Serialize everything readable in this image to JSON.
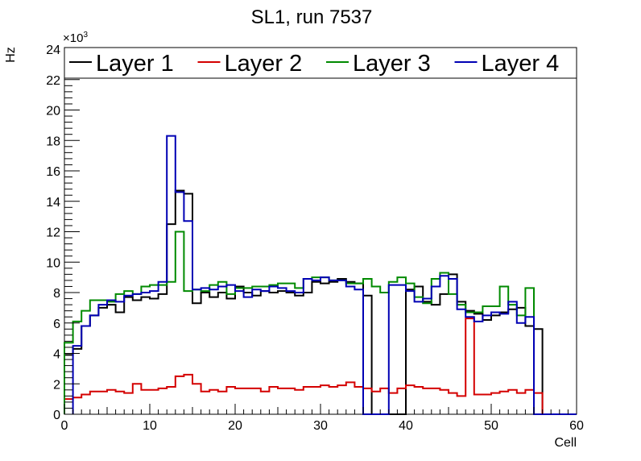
{
  "chart_data": {
    "type": "line",
    "title": "SL1, run 7537",
    "xlabel": "Cell",
    "ylabel": "Hz",
    "ymultiplier": "×10",
    "ymultiplier_exp": "3",
    "xlim": [
      0,
      60
    ],
    "ylim": [
      0,
      24
    ],
    "x_ticks": [
      0,
      10,
      20,
      30,
      40,
      50,
      60
    ],
    "y_ticks": [
      0,
      2,
      4,
      6,
      8,
      10,
      12,
      14,
      16,
      18,
      20,
      22,
      24
    ],
    "legend_position": "top",
    "series": [
      {
        "name": "Layer 1",
        "color": "#000000",
        "bin_start": 0,
        "values": [
          3.9,
          4.3,
          5.8,
          6.5,
          7.0,
          7.2,
          6.7,
          7.7,
          7.5,
          7.7,
          7.6,
          7.9,
          12.5,
          14.7,
          14.5,
          7.3,
          8.0,
          7.7,
          8.0,
          7.6,
          8.4,
          8.0,
          7.8,
          8.1,
          8.0,
          8.1,
          8.0,
          7.8,
          8.0,
          8.7,
          8.6,
          8.7,
          8.9,
          8.7,
          8.6,
          7.8,
          0,
          0,
          0,
          0,
          8.2,
          8.4,
          7.4,
          7.2,
          7.9,
          9.2,
          7.4,
          6.8,
          6.6,
          6.2,
          6.5,
          6.7,
          6.9,
          7.0,
          5.8,
          5.6,
          0,
          0,
          0,
          0
        ]
      },
      {
        "name": "Layer 2",
        "color": "#d40000",
        "bin_start": 0,
        "values": [
          1.0,
          1.1,
          1.3,
          1.5,
          1.5,
          1.6,
          1.5,
          1.4,
          2.0,
          1.6,
          1.6,
          1.7,
          1.8,
          2.5,
          2.6,
          2.0,
          1.5,
          1.6,
          1.5,
          1.8,
          1.7,
          1.7,
          1.7,
          1.5,
          1.8,
          1.7,
          1.7,
          1.6,
          1.8,
          1.8,
          1.9,
          1.8,
          1.9,
          2.1,
          1.8,
          1.7,
          1.5,
          1.7,
          1.4,
          1.7,
          1.9,
          1.8,
          1.7,
          1.7,
          1.6,
          1.4,
          1.2,
          6.3,
          1.3,
          1.3,
          1.4,
          1.5,
          1.6,
          1.4,
          1.6,
          1.4,
          0,
          0,
          0,
          0
        ]
      },
      {
        "name": "Layer 3",
        "color": "#008a00",
        "bin_start": 0,
        "values": [
          4.7,
          6.1,
          6.8,
          7.5,
          7.5,
          7.4,
          7.9,
          8.1,
          7.9,
          8.4,
          8.5,
          8.5,
          8.7,
          12.0,
          8.1,
          8.2,
          8.1,
          8.5,
          8.7,
          7.9,
          8.3,
          8.3,
          8.4,
          8.4,
          8.5,
          8.6,
          8.6,
          8.3,
          8.9,
          9.0,
          9.0,
          8.8,
          8.8,
          8.6,
          8.6,
          8.9,
          8.4,
          8.0,
          8.7,
          9.0,
          8.6,
          7.7,
          7.3,
          8.9,
          9.3,
          7.9,
          7.2,
          6.7,
          6.7,
          7.1,
          7.1,
          8.4,
          7.2,
          6.5,
          8.3,
          0,
          0,
          0,
          0,
          0
        ]
      },
      {
        "name": "Layer 4",
        "color": "#0000b4",
        "bin_start": 1,
        "values": [
          4.5,
          5.8,
          6.5,
          7.2,
          7.5,
          7.4,
          7.8,
          7.9,
          8.0,
          8.1,
          8.7,
          18.3,
          14.6,
          12.7,
          8.2,
          8.3,
          8.2,
          8.4,
          8.5,
          8.1,
          7.7,
          8.2,
          8.1,
          8.4,
          8.3,
          8.1,
          8.0,
          8.9,
          8.8,
          9.0,
          8.8,
          8.8,
          8.4,
          8.2,
          0,
          0,
          0,
          8.5,
          8.5,
          8.1,
          7.4,
          7.6,
          8.4,
          9.1,
          8.9,
          6.9,
          6.4,
          6.1,
          6.5,
          6.7,
          6.6,
          7.4,
          6.0,
          6.4,
          0,
          0,
          0,
          0,
          0
        ]
      }
    ]
  }
}
